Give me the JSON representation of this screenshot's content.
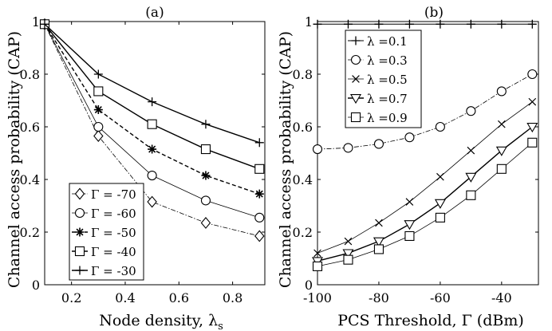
{
  "chart_data": [
    {
      "type": "line",
      "title": "(a)",
      "xlabel": "Node density, λ",
      "xlabel_sub": "s",
      "ylabel": "Channel access probability (CAP)",
      "xlim": [
        0.1,
        0.92
      ],
      "ylim": [
        0,
        1
      ],
      "xticks": [
        0.2,
        0.4,
        0.6,
        0.8
      ],
      "yticks": [
        0,
        0.2,
        0.4,
        0.6,
        0.8,
        1
      ],
      "xtick_labels": [
        "0.2",
        "0.4",
        "0.6",
        "0.8"
      ],
      "ytick_labels": [
        "0",
        "0.2",
        "0.4",
        "0.6",
        "0.8",
        "1"
      ],
      "legend_position": "bottom-left",
      "x": [
        0.1,
        0.3,
        0.5,
        0.7,
        0.9
      ],
      "series": [
        {
          "name": "Γ = -70",
          "marker": "diamond",
          "dash": "dashdot",
          "width": 0.8,
          "values": [
            0.99,
            0.565,
            0.315,
            0.235,
            0.185
          ]
        },
        {
          "name": "Γ = -60",
          "marker": "circle",
          "dash": "solid",
          "width": 0.8,
          "values": [
            0.99,
            0.6,
            0.415,
            0.32,
            0.255
          ]
        },
        {
          "name": "Γ = -50",
          "marker": "star",
          "dash": "dashed",
          "width": 1.4,
          "values": [
            0.99,
            0.665,
            0.515,
            0.415,
            0.345
          ]
        },
        {
          "name": "Γ = -40",
          "marker": "square",
          "dash": "solid",
          "width": 1.4,
          "values": [
            0.99,
            0.735,
            0.61,
            0.515,
            0.44
          ]
        },
        {
          "name": "Γ = -30",
          "marker": "plus",
          "dash": "solid",
          "width": 1.4,
          "values": [
            0.99,
            0.8,
            0.695,
            0.61,
            0.54
          ]
        }
      ]
    },
    {
      "type": "line",
      "title": "(b)",
      "xlabel": "PCS Threshold, Γ (dBm)",
      "ylabel": "Channel access probability (CAP)",
      "xlim": [
        -100,
        -28
      ],
      "ylim": [
        0,
        1
      ],
      "xticks": [
        -100,
        -80,
        -60,
        -40
      ],
      "yticks": [
        0,
        0.2,
        0.4,
        0.6,
        0.8,
        1
      ],
      "xtick_labels": [
        "-100",
        "-80",
        "-60",
        "-40"
      ],
      "ytick_labels": [
        "0",
        "0.2",
        "0.4",
        "0.6",
        "0.8",
        "1"
      ],
      "legend_position": "top-left",
      "x": [
        -100,
        -90,
        -80,
        -70,
        -60,
        -50,
        -40,
        -30
      ],
      "series": [
        {
          "name": "λ =0.1",
          "marker": "plus",
          "dash": "solid",
          "width": 1.0,
          "values": [
            0.99,
            0.99,
            0.99,
            0.99,
            0.99,
            0.99,
            0.99,
            0.99
          ]
        },
        {
          "name": "λ =0.3",
          "marker": "circle",
          "dash": "dashdot",
          "width": 0.8,
          "values": [
            0.515,
            0.52,
            0.535,
            0.56,
            0.6,
            0.66,
            0.735,
            0.8
          ]
        },
        {
          "name": "λ =0.5",
          "marker": "x",
          "dash": "solid",
          "width": 0.8,
          "values": [
            0.12,
            0.165,
            0.235,
            0.315,
            0.41,
            0.51,
            0.61,
            0.695
          ]
        },
        {
          "name": "λ =0.7",
          "marker": "triangle-down",
          "dash": "solid",
          "width": 1.4,
          "values": [
            0.09,
            0.12,
            0.165,
            0.23,
            0.31,
            0.41,
            0.51,
            0.6
          ]
        },
        {
          "name": "λ =0.9",
          "marker": "square",
          "dash": "solid",
          "width": 0.8,
          "values": [
            0.07,
            0.095,
            0.135,
            0.185,
            0.255,
            0.34,
            0.44,
            0.54
          ]
        }
      ]
    }
  ]
}
